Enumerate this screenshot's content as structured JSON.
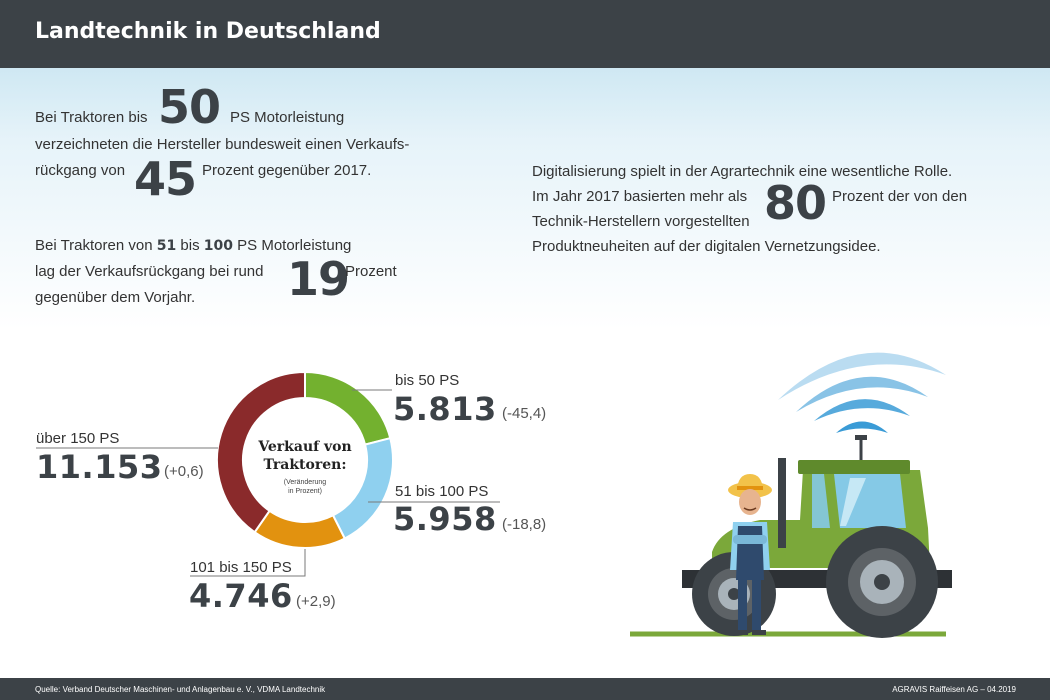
{
  "header": {
    "title": "Landtechnik in Deutschland"
  },
  "facts": {
    "p1": {
      "pre": "Bei Traktoren bis",
      "ps_value": "50",
      "post": "PS Motorleistung",
      "line2": "verzeichneten die Hersteller bundesweit einen Verkaufs-",
      "line3_pre": "rückgang von",
      "percent": "45",
      "line3_post": "Prozent gegenüber 2017."
    },
    "p2": {
      "pre": "Bei Traktoren von",
      "from": "51",
      "mid": "bis",
      "to": "100",
      "post": "PS Motorleistung",
      "line2_pre": "lag der Verkaufsrückgang bei rund",
      "percent": "19",
      "line2_post": "Prozent",
      "line3": "gegenüber dem Vorjahr."
    },
    "p3": {
      "line1": "Digitalisierung spielt in der Agrartechnik eine wesentliche Rolle.",
      "line2_pre": "Im Jahr 2017 basierten mehr als",
      "percent": "80",
      "line2_post": "Prozent der von den",
      "line3": "Technik-Herstellern vorgestellten",
      "line4": "Produktneuheiten auf der digitalen Vernetzungsidee."
    }
  },
  "chart_data": {
    "type": "pie",
    "title": "Verkauf von Traktoren:",
    "subtitle": "(Veränderung in Prozent)",
    "title_line1": "Verkauf von",
    "title_line2": "Traktoren:",
    "subtitle_line1": "(Veränderung",
    "subtitle_line2": "in Prozent)",
    "categories": [
      "bis 50 PS",
      "51 bis 100 PS",
      "101 bis 150 PS",
      "über 150 PS"
    ],
    "values": [
      5813,
      5958,
      4746,
      11153
    ],
    "value_labels": [
      "5.813",
      "5.958",
      "4.746",
      "11.153"
    ],
    "changes": [
      "(-45,4)",
      "(-18,8)",
      "(+2,9)",
      "(+0,6)"
    ],
    "colors": [
      "#73b12f",
      "#8fd0ef",
      "#e2920f",
      "#8a2a2b"
    ]
  },
  "illustration": {
    "description_icon": "farmer-tractor-wifi"
  },
  "colors": {
    "header_bg": "#3c4247",
    "accent_green": "#7ba83a",
    "wifi_blue": "#3a9bd6"
  },
  "footer": {
    "source": "Quelle:  Verband Deutscher Maschinen- und Anlagenbau e. V., VDMA Landtechnik",
    "credit": "AGRAVIS Raiffeisen AG – 04.2019"
  }
}
